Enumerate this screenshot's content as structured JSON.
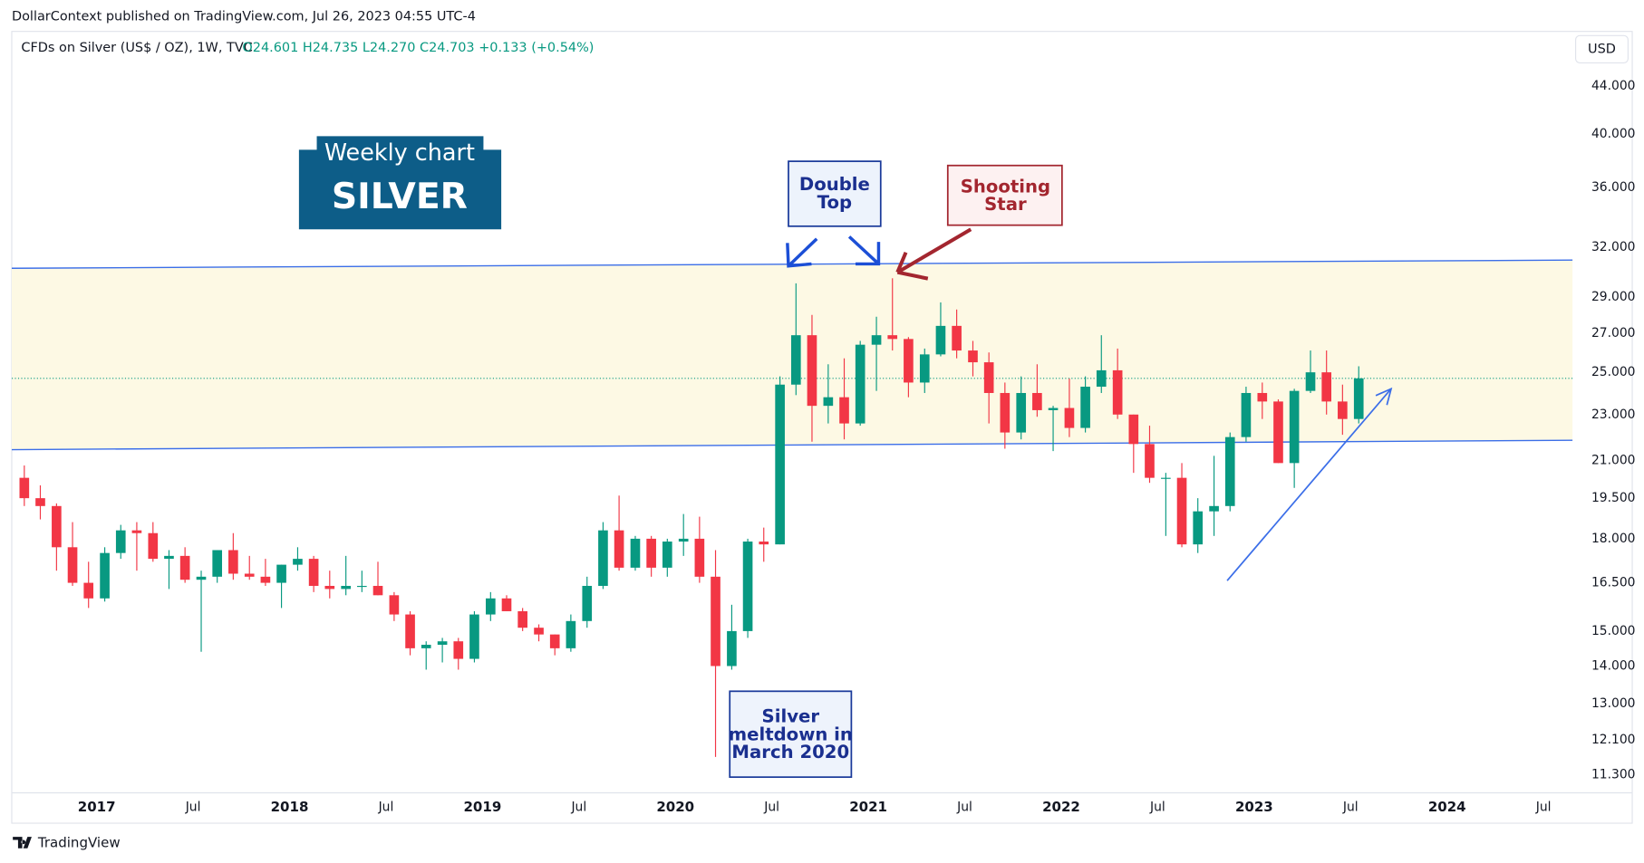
{
  "header": {
    "published": "DollarContext published on TradingView.com, Jul 26, 2023 04:55 UTC-4",
    "symbol": "CFDs on Silver (US$ / OZ), 1W, TVC",
    "quote": "O24.601 H24.735 L24.270 C24.703 +0.133 (+0.54%)",
    "currency": "USD"
  },
  "footer": {
    "brand": "TradingView"
  },
  "chart_data": {
    "type": "candlestick",
    "log_scale": true,
    "grid": false,
    "up_color": "#089981",
    "down_color": "#f23645",
    "xlim": [
      2016.56,
      2024.65
    ],
    "ylim": [
      10.9,
      49
    ],
    "xticks": [
      {
        "value": 2017,
        "label": "2017"
      },
      {
        "value": 2017.5,
        "label": "Jul"
      },
      {
        "value": 2018,
        "label": "2018"
      },
      {
        "value": 2018.5,
        "label": "Jul"
      },
      {
        "value": 2019,
        "label": "2019"
      },
      {
        "value": 2019.5,
        "label": "Jul"
      },
      {
        "value": 2020,
        "label": "2020"
      },
      {
        "value": 2020.5,
        "label": "Jul"
      },
      {
        "value": 2021,
        "label": "2021"
      },
      {
        "value": 2021.5,
        "label": "Jul"
      },
      {
        "value": 2022,
        "label": "2022"
      },
      {
        "value": 2022.5,
        "label": "Jul"
      },
      {
        "value": 2023,
        "label": "2023"
      },
      {
        "value": 2023.5,
        "label": "Jul"
      },
      {
        "value": 2024,
        "label": "2024"
      },
      {
        "value": 2024.5,
        "label": "Jul"
      }
    ],
    "yticks": [
      {
        "value": 11.3,
        "label": "11.300"
      },
      {
        "value": 12.1,
        "label": "12.100"
      },
      {
        "value": 13,
        "label": "13.000"
      },
      {
        "value": 14,
        "label": "14.000"
      },
      {
        "value": 15,
        "label": "15.000"
      },
      {
        "value": 16.5,
        "label": "16.500"
      },
      {
        "value": 18,
        "label": "18.000"
      },
      {
        "value": 19.5,
        "label": "19.500"
      },
      {
        "value": 21,
        "label": "21.000"
      },
      {
        "value": 23,
        "label": "23.000"
      },
      {
        "value": 25,
        "label": "25.000"
      },
      {
        "value": 27,
        "label": "27.000"
      },
      {
        "value": 29,
        "label": "29.000"
      },
      {
        "value": 32,
        "label": "32.000"
      },
      {
        "value": 36,
        "label": "36.000"
      },
      {
        "value": 40,
        "label": "40.000"
      },
      {
        "value": 44,
        "label": "44.000"
      }
    ],
    "x": [
      2016.625,
      2016.708,
      2016.792,
      2016.875,
      2016.958,
      2017.042,
      2017.125,
      2017.208,
      2017.292,
      2017.375,
      2017.458,
      2017.542,
      2017.625,
      2017.708,
      2017.792,
      2017.875,
      2017.958,
      2018.042,
      2018.125,
      2018.208,
      2018.292,
      2018.375,
      2018.458,
      2018.542,
      2018.625,
      2018.708,
      2018.792,
      2018.875,
      2018.958,
      2019.042,
      2019.125,
      2019.208,
      2019.292,
      2019.375,
      2019.458,
      2019.542,
      2019.625,
      2019.708,
      2019.792,
      2019.875,
      2019.958,
      2020.042,
      2020.125,
      2020.208,
      2020.292,
      2020.375,
      2020.458,
      2020.542,
      2020.625,
      2020.708,
      2020.792,
      2020.875,
      2020.958,
      2021.042,
      2021.125,
      2021.208,
      2021.292,
      2021.375,
      2021.458,
      2021.542,
      2021.625,
      2021.708,
      2021.792,
      2021.875,
      2021.958,
      2022.042,
      2022.125,
      2022.208,
      2022.292,
      2022.375,
      2022.458,
      2022.542,
      2022.625,
      2022.708,
      2022.792,
      2022.875,
      2022.958,
      2023.042,
      2023.125,
      2023.208,
      2023.292,
      2023.375,
      2023.458,
      2023.542
    ],
    "open": [
      20.3,
      19.5,
      19.2,
      17.7,
      16.5,
      16.0,
      17.5,
      18.3,
      18.2,
      17.3,
      17.4,
      16.6,
      16.7,
      17.6,
      16.8,
      16.7,
      16.5,
      17.1,
      17.3,
      16.4,
      16.3,
      16.4,
      16.4,
      16.1,
      15.5,
      14.5,
      14.6,
      14.7,
      14.2,
      15.5,
      16.0,
      15.6,
      15.1,
      14.9,
      14.5,
      15.3,
      16.4,
      18.3,
      17.0,
      18.0,
      17.0,
      17.9,
      18.0,
      16.7,
      14.0,
      15.0,
      17.9,
      17.8,
      24.4,
      26.9,
      23.4,
      23.8,
      22.6,
      26.4,
      26.9,
      26.7,
      24.5,
      25.9,
      27.4,
      26.1,
      25.5,
      24.0,
      22.2,
      24.0,
      23.2,
      23.3,
      22.4,
      24.3,
      25.1,
      23.0,
      21.7,
      20.3,
      20.3,
      17.8,
      19.0,
      19.2,
      22.0,
      24.0,
      23.6,
      20.9,
      24.1,
      25.0,
      23.6,
      22.8
    ],
    "high": [
      20.8,
      20.0,
      19.3,
      18.6,
      17.2,
      17.7,
      18.5,
      18.6,
      18.6,
      17.6,
      17.7,
      16.9,
      17.6,
      18.2,
      17.4,
      17.3,
      17.1,
      17.7,
      17.4,
      16.9,
      17.4,
      16.9,
      17.2,
      16.2,
      15.6,
      14.7,
      14.8,
      14.8,
      15.6,
      16.2,
      16.1,
      15.7,
      15.2,
      14.9,
      15.5,
      16.7,
      18.6,
      19.6,
      18.1,
      18.1,
      18.0,
      18.9,
      18.8,
      17.6,
      15.8,
      18.0,
      18.4,
      24.8,
      29.8,
      28.0,
      25.4,
      25.7,
      26.6,
      27.9,
      30.1,
      26.8,
      26.2,
      28.7,
      28.3,
      26.6,
      26.0,
      24.5,
      24.8,
      25.4,
      23.4,
      24.7,
      24.8,
      26.9,
      26.2,
      23.0,
      22.5,
      20.5,
      20.9,
      19.5,
      21.2,
      22.2,
      24.3,
      24.5,
      23.7,
      24.2,
      26.1,
      26.1,
      24.4,
      25.3
    ],
    "low": [
      19.2,
      18.7,
      16.9,
      16.4,
      15.7,
      15.9,
      17.3,
      16.9,
      17.2,
      16.3,
      16.5,
      14.4,
      16.5,
      16.6,
      16.6,
      16.4,
      15.7,
      16.9,
      16.2,
      16.0,
      16.1,
      16.2,
      16.1,
      15.3,
      14.3,
      13.9,
      14.1,
      13.9,
      14.1,
      15.3,
      15.6,
      15.0,
      14.7,
      14.3,
      14.4,
      15.1,
      16.3,
      16.9,
      16.9,
      16.7,
      16.7,
      17.4,
      16.5,
      11.7,
      13.9,
      14.8,
      17.2,
      17.8,
      23.9,
      21.8,
      22.6,
      21.9,
      22.5,
      24.1,
      26.1,
      23.8,
      24.0,
      25.8,
      25.7,
      24.8,
      22.6,
      21.5,
      21.9,
      22.9,
      21.4,
      22.0,
      22.2,
      24.0,
      22.8,
      20.5,
      20.1,
      18.1,
      17.7,
      17.5,
      18.1,
      19.0,
      21.8,
      22.8,
      20.9,
      19.9,
      24.0,
      23.0,
      22.1,
      22.6
    ],
    "close": [
      19.5,
      19.2,
      17.7,
      16.5,
      16.0,
      17.5,
      18.3,
      18.2,
      17.3,
      17.4,
      16.6,
      16.7,
      17.6,
      16.8,
      16.7,
      16.5,
      17.1,
      17.3,
      16.4,
      16.3,
      16.4,
      16.4,
      16.1,
      15.5,
      14.5,
      14.6,
      14.7,
      14.2,
      15.5,
      16.0,
      15.6,
      15.1,
      14.9,
      14.5,
      15.3,
      16.4,
      18.3,
      17.0,
      18.0,
      17.0,
      17.9,
      18.0,
      16.7,
      14.0,
      15.0,
      17.9,
      17.8,
      24.4,
      26.9,
      23.4,
      23.8,
      22.6,
      26.4,
      26.9,
      26.7,
      24.5,
      25.9,
      27.4,
      26.1,
      25.5,
      24.0,
      22.2,
      24.0,
      23.2,
      23.3,
      22.4,
      24.3,
      25.1,
      23.0,
      21.7,
      20.3,
      20.3,
      17.8,
      19.0,
      19.2,
      22.0,
      24.0,
      23.6,
      20.9,
      24.1,
      25.0,
      23.6,
      22.8,
      24.703
    ],
    "last_close": 24.703,
    "levels": [
      {
        "x": [
          2016.56,
          2024.65
        ],
        "values": [
          30.7,
          31.2
        ],
        "color": "#3b6ee8"
      },
      {
        "x": [
          2016.56,
          2024.65
        ],
        "values": [
          21.46,
          21.86
        ],
        "color": "#3b6ee8"
      }
    ],
    "band_color": "#fdf9e4",
    "arrow": {
      "x": [
        2022.86,
        2023.71
      ],
      "values": [
        16.57,
        24.2
      ],
      "color": "#3b6ee8"
    },
    "annotations": [
      {
        "lines": [
          "Weekly chart",
          "SILVER"
        ]
      },
      {
        "lines": [
          "Double",
          "Top"
        ]
      },
      {
        "lines": [
          "Shooting",
          "Star"
        ]
      },
      {
        "lines": [
          "Silver",
          "meltdown in",
          "March 2020"
        ]
      }
    ]
  }
}
